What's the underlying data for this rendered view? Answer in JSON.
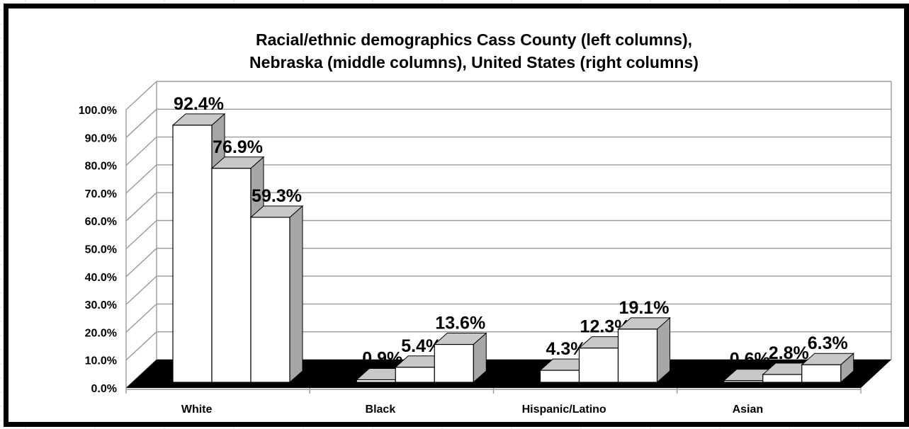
{
  "chart_data": {
    "type": "bar",
    "title": [
      "Racial/ethnic demographics Cass County (left columns),",
      "Nebraska (middle columns), United States (right columns)"
    ],
    "categories": [
      "White",
      "Black",
      "Hispanic/Latino",
      "Asian"
    ],
    "series": [
      {
        "values": [
          92.4,
          0.9,
          4.3,
          0.6
        ]
      },
      {
        "values": [
          76.9,
          5.4,
          12.3,
          2.8
        ]
      },
      {
        "values": [
          59.3,
          13.6,
          19.1,
          6.3
        ]
      }
    ],
    "data_labels": [
      [
        "92.4%",
        "0.9%",
        "4.3%",
        "0.6%"
      ],
      [
        "76.9%",
        "5.4%",
        "12.3%",
        "2.8%"
      ],
      [
        "59.3%",
        "13.6%",
        "19.1%",
        "6.3%"
      ]
    ],
    "y_ticks": [
      "0.0%",
      "10.0%",
      "20.0%",
      "30.0%",
      "40.0%",
      "50.0%",
      "60.0%",
      "70.0%",
      "80.0%",
      "90.0%",
      "100.0%"
    ],
    "ylim": [
      0,
      100
    ],
    "three_d": true,
    "grid": true,
    "legend": "none",
    "colors": {
      "bar_front": "#ffffff",
      "bar_side": "#a6a6a6",
      "bar_top": "#c8c8c8",
      "floor": "#000000",
      "grid": "#9a9a9a",
      "border": "#000000"
    }
  }
}
